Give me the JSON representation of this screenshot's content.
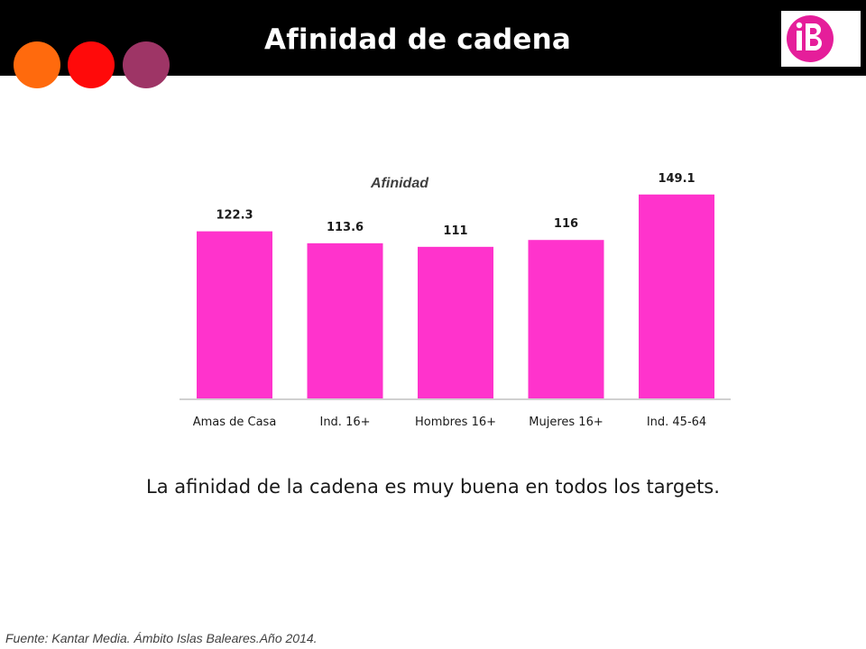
{
  "header": {
    "title": "Afinidad de cadena"
  },
  "brand": {
    "logo_text": "iB",
    "logo_color": "#e51e9a",
    "header_bg": "#000000"
  },
  "decor": {
    "circle_colors": [
      "#ff6a0d",
      "#ff0a0a",
      "#9e3566"
    ]
  },
  "chart_data": {
    "type": "bar",
    "title": "Afinidad",
    "categories": [
      "Amas de Casa",
      "Ind. 16+",
      "Hombres 16+",
      "Mujeres 16+",
      "Ind. 45-64"
    ],
    "values": [
      122.3,
      113.6,
      111,
      116,
      149.1
    ],
    "value_labels": [
      "122.3",
      "113.6",
      "111",
      "116",
      "149.1"
    ],
    "ylim": [
      0,
      150
    ],
    "bar_color": "#ff33cc",
    "grid": false,
    "xlabel": "",
    "ylabel": ""
  },
  "caption": "La afinidad de la cadena es muy buena en todos los targets.",
  "source": "Fuente: Kantar Media. Ámbito Islas Baleares.Año 2014."
}
